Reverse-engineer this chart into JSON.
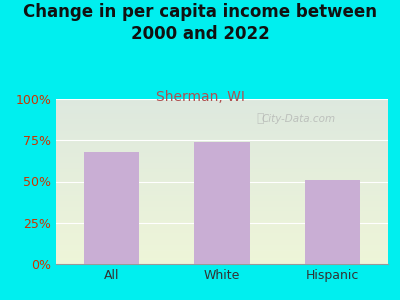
{
  "title": "Change in per capita income between\n2000 and 2022",
  "subtitle": "Sherman, WI",
  "categories": [
    "All",
    "White",
    "Hispanic"
  ],
  "values": [
    68,
    74,
    51
  ],
  "bar_color": "#c9aed4",
  "title_fontsize": 12,
  "subtitle_fontsize": 10,
  "subtitle_color": "#b05050",
  "title_color": "#111111",
  "tick_color": "#cc3300",
  "xtick_color": "#333333",
  "background_color": "#00efef",
  "plot_bg_top": "#dde8de",
  "plot_bg_bottom": "#eef5d8",
  "ylim": [
    0,
    100
  ],
  "yticks": [
    0,
    25,
    50,
    75,
    100
  ],
  "ytick_labels": [
    "0%",
    "25%",
    "50%",
    "75%",
    "100%"
  ],
  "watermark": "City-Data.com"
}
